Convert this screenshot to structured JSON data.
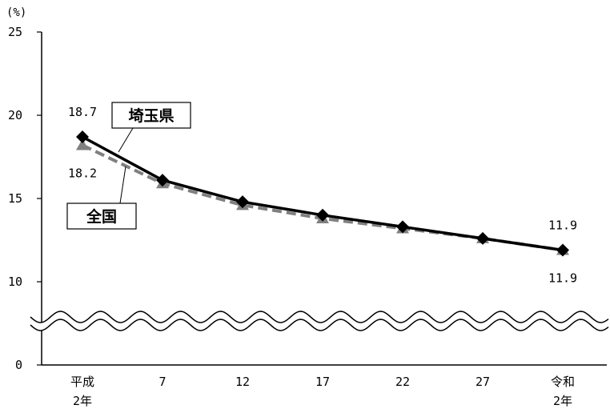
{
  "chart_data": {
    "type": "line",
    "unit_label": "(%)",
    "categories": [
      "平成\n2年",
      "7",
      "12",
      "17",
      "22",
      "27",
      "令和\n2年"
    ],
    "y_ticks": [
      "25",
      "20",
      "15",
      "10",
      "0"
    ],
    "ylim": [
      0,
      25
    ],
    "axis_break": true,
    "grid": false,
    "series": [
      {
        "name": "埼玉県",
        "values": [
          18.7,
          16.1,
          14.8,
          14.0,
          13.3,
          12.6,
          11.9
        ],
        "color": "#000000",
        "style": "solid",
        "marker": "diamond"
      },
      {
        "name": "全国",
        "values": [
          18.2,
          15.9,
          14.6,
          13.8,
          13.2,
          12.6,
          11.9
        ],
        "color": "#808080",
        "style": "dashed",
        "marker": "triangle"
      }
    ],
    "data_labels": [
      {
        "series": 0,
        "index": 0,
        "text": "18.7"
      },
      {
        "series": 1,
        "index": 0,
        "text": "18.2"
      },
      {
        "series": 0,
        "index": 6,
        "text": "11.9"
      },
      {
        "series": 1,
        "index": 6,
        "text": "11.9"
      }
    ]
  }
}
